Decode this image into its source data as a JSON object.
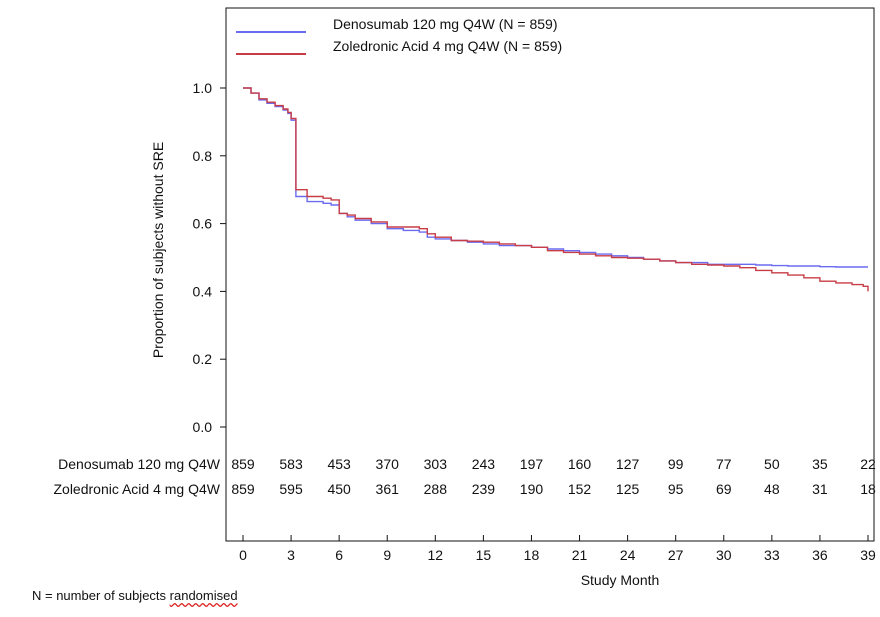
{
  "chart_data": {
    "type": "line",
    "step": true,
    "title": "",
    "xlabel": "Study Month",
    "ylabel": "Proportion of subjects without SRE",
    "xlim": [
      0,
      39
    ],
    "ylim": [
      0,
      1.0
    ],
    "x_ticks": [
      0,
      3,
      6,
      9,
      12,
      15,
      18,
      21,
      24,
      27,
      30,
      33,
      36,
      39
    ],
    "x_tick_labels": [
      "0",
      "3",
      "6",
      "9",
      "12",
      "15",
      "18",
      "21",
      "24",
      "27",
      "30",
      "33",
      "36",
      "39"
    ],
    "y_ticks": [
      0,
      0.2,
      0.4,
      0.6,
      0.8,
      1.0
    ],
    "y_tick_labels": [
      "0.0",
      "0.2",
      "0.4",
      "0.6",
      "0.8",
      "1.0"
    ],
    "legend_position": "top",
    "series": [
      {
        "name": "Denosumab 120 mg Q4W (N = 859)",
        "color": "#6b6bf0",
        "x": [
          0,
          0.5,
          1,
          1.5,
          2,
          2.5,
          2.8,
          3,
          3.3,
          4,
          5,
          5.5,
          6,
          6.5,
          7,
          8,
          9,
          10,
          11,
          11.5,
          12,
          13,
          14,
          15,
          16,
          17,
          18,
          19,
          20,
          21,
          22,
          23,
          24,
          25,
          26,
          27,
          28,
          29,
          30,
          31,
          32,
          33,
          34,
          35,
          36,
          37,
          38,
          39
        ],
        "y": [
          1.0,
          0.985,
          0.965,
          0.955,
          0.945,
          0.935,
          0.925,
          0.905,
          0.68,
          0.665,
          0.66,
          0.655,
          0.63,
          0.62,
          0.61,
          0.6,
          0.585,
          0.58,
          0.575,
          0.56,
          0.555,
          0.55,
          0.545,
          0.54,
          0.535,
          0.535,
          0.53,
          0.525,
          0.52,
          0.515,
          0.51,
          0.505,
          0.5,
          0.495,
          0.49,
          0.485,
          0.485,
          0.48,
          0.48,
          0.48,
          0.478,
          0.476,
          0.475,
          0.475,
          0.473,
          0.472,
          0.472,
          0.472
        ]
      },
      {
        "name": "Zoledronic Acid 4 mg Q4W (N = 859)",
        "color": "#c83c46",
        "x": [
          0,
          0.5,
          1,
          1.5,
          2,
          2.5,
          2.8,
          3,
          3.3,
          4,
          5,
          5.5,
          6,
          6.5,
          7,
          8,
          9,
          10,
          11,
          11.5,
          12,
          13,
          14,
          15,
          16,
          17,
          18,
          19,
          20,
          21,
          22,
          23,
          24,
          25,
          26,
          27,
          28,
          29,
          30,
          31,
          32,
          33,
          34,
          35,
          36,
          37,
          38,
          38.7,
          39
        ],
        "y": [
          1.0,
          0.985,
          0.968,
          0.958,
          0.948,
          0.938,
          0.928,
          0.91,
          0.7,
          0.68,
          0.675,
          0.67,
          0.63,
          0.625,
          0.615,
          0.605,
          0.59,
          0.59,
          0.585,
          0.57,
          0.56,
          0.55,
          0.548,
          0.545,
          0.54,
          0.535,
          0.53,
          0.52,
          0.515,
          0.51,
          0.505,
          0.5,
          0.498,
          0.495,
          0.49,
          0.485,
          0.48,
          0.478,
          0.475,
          0.47,
          0.462,
          0.455,
          0.448,
          0.44,
          0.43,
          0.425,
          0.42,
          0.415,
          0.4
        ]
      }
    ],
    "risk_table": {
      "rows": [
        {
          "label": "Denosumab 120 mg Q4W",
          "values": [
            "859",
            "583",
            "453",
            "370",
            "303",
            "243",
            "197",
            "160",
            "127",
            "99",
            "77",
            "50",
            "35",
            "22"
          ]
        },
        {
          "label": "Zoledronic Acid 4 mg Q4W",
          "values": [
            "859",
            "595",
            "450",
            "361",
            "288",
            "239",
            "190",
            "152",
            "125",
            "95",
            "69",
            "48",
            "31",
            "18"
          ]
        }
      ]
    }
  },
  "footnote": {
    "prefix": "N = number of subjects ",
    "underlined_word": "randomised"
  }
}
